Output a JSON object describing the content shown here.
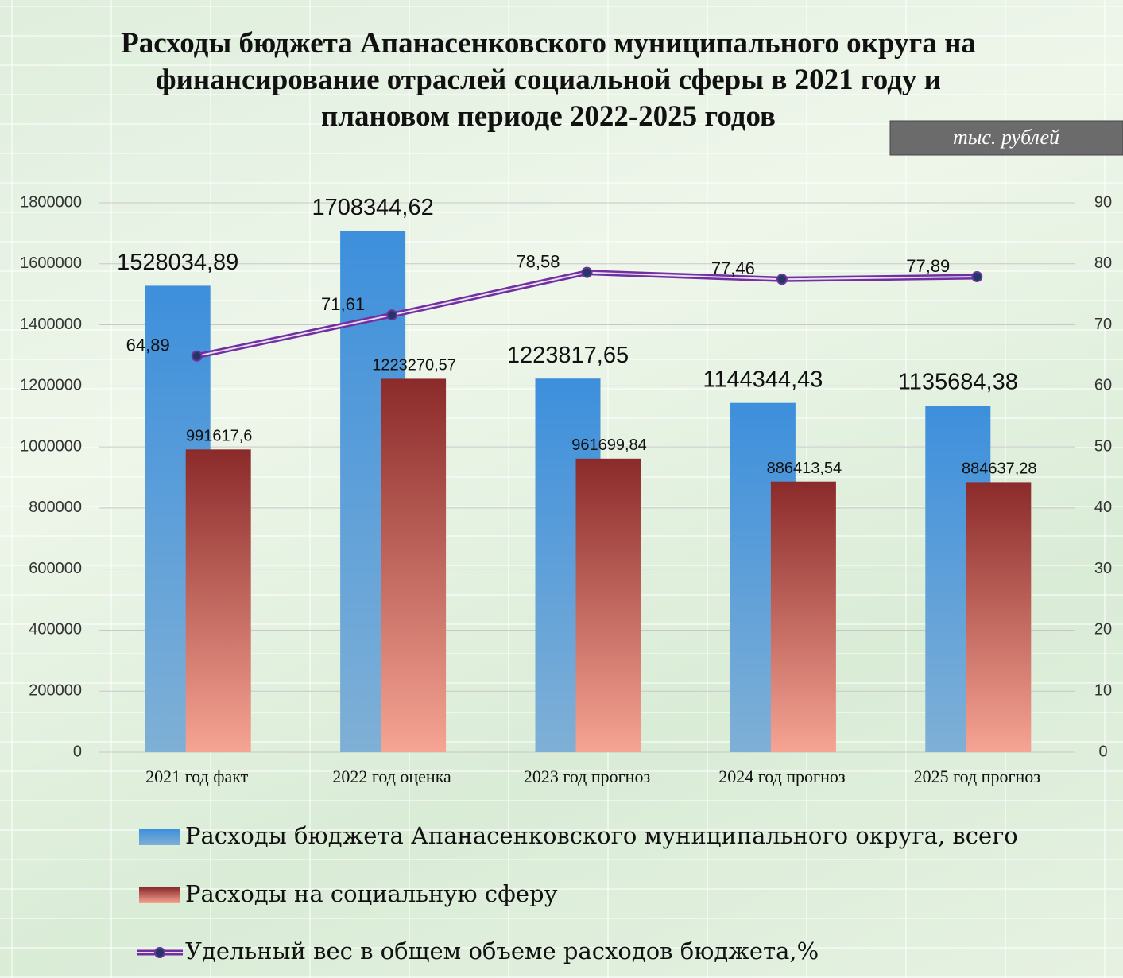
{
  "chart_data": {
    "type": "bar_line",
    "title": "Расходы бюджета Апанасенковского муниципального округа на финансирование отраслей социальной сферы в 2021 году и плановом периоде 2022-2025 годов",
    "unit_label": "тыс. рублей",
    "categories": [
      "2021 год факт",
      "2022 год оценка",
      "2023 год прогноз",
      "2024 год прогноз",
      "2025 год прогноз"
    ],
    "series": [
      {
        "name": "Расходы бюджета Апанасенковского муниципального округа, всего",
        "type": "bar",
        "color": "#3d8fdc",
        "values": [
          1528034.89,
          1708344.62,
          1223817.65,
          1144344.43,
          1135684.38
        ],
        "value_labels": [
          "1528034,89",
          "1708344,62",
          "1223817,65",
          "1144344,43",
          "1135684,38"
        ]
      },
      {
        "name": "Расходы на социальную сферу",
        "type": "bar",
        "color": "#8b2a2a",
        "values": [
          991617.6,
          1223270.57,
          961699.84,
          886413.54,
          884637.28
        ],
        "value_labels": [
          "991617,6",
          "1223270,57",
          "961699,84",
          "886413,54",
          "884637,28"
        ]
      },
      {
        "name": "Удельный вес в общем объеме расходов бюджета,%",
        "type": "line",
        "axis": "y2",
        "color": "#7030a0",
        "values": [
          64.89,
          71.61,
          78.58,
          77.46,
          77.89
        ],
        "value_labels": [
          "64,89",
          "71,61",
          "78,58",
          "77,46",
          "77,89"
        ]
      }
    ],
    "ylim": [
      0,
      1800000
    ],
    "yticks": [
      0,
      200000,
      400000,
      600000,
      800000,
      1000000,
      1200000,
      1400000,
      1600000,
      1800000
    ],
    "y2lim": [
      0,
      90
    ],
    "y2ticks": [
      0,
      10,
      20,
      30,
      40,
      50,
      60,
      70,
      80,
      90
    ]
  }
}
